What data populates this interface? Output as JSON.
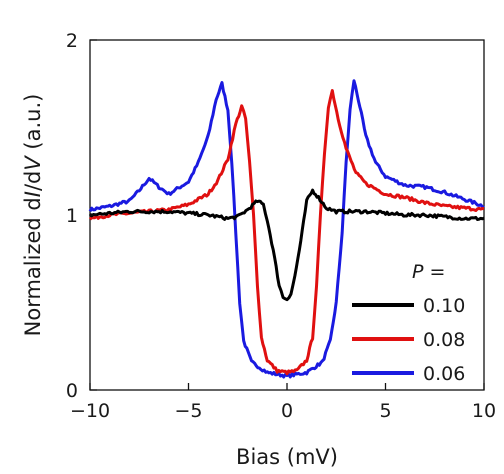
{
  "chart_data": {
    "type": "line",
    "xlabel": "Bias (mV)",
    "ylabel_parts": [
      "Normalized d",
      "I",
      "/d",
      "V",
      " (a.u.)"
    ],
    "xlim": [
      -10,
      10
    ],
    "ylim": [
      0,
      2
    ],
    "x_ticks": [
      -10,
      -5,
      0,
      5,
      10
    ],
    "x_tick_labels": [
      "−10",
      "−5",
      "0",
      "5",
      "10"
    ],
    "y_ticks": [
      0,
      1,
      2
    ],
    "y_tick_labels": [
      "0",
      "1",
      "2"
    ],
    "grid": false,
    "legend": {
      "placement": "bottom-right",
      "title_italic": "P",
      "title_rest": " ="
    },
    "series": [
      {
        "name": "0.10",
        "color": "#000000",
        "points": [
          [
            -10,
            1.0
          ],
          [
            -9,
            1.01
          ],
          [
            -8,
            1.02
          ],
          [
            -7,
            1.02
          ],
          [
            -6,
            1.02
          ],
          [
            -5,
            1.01
          ],
          [
            -4,
            1.0
          ],
          [
            -3,
            0.98
          ],
          [
            -2.5,
            0.99
          ],
          [
            -2,
            1.03
          ],
          [
            -1.5,
            1.08
          ],
          [
            -1.2,
            1.06
          ],
          [
            -1,
            0.97
          ],
          [
            -0.7,
            0.8
          ],
          [
            -0.4,
            0.6
          ],
          [
            -0.2,
            0.53
          ],
          [
            0,
            0.52
          ],
          [
            0.2,
            0.55
          ],
          [
            0.4,
            0.65
          ],
          [
            0.7,
            0.85
          ],
          [
            1,
            1.08
          ],
          [
            1.3,
            1.14
          ],
          [
            1.6,
            1.1
          ],
          [
            2,
            1.04
          ],
          [
            2.5,
            1.02
          ],
          [
            3,
            1.02
          ],
          [
            4,
            1.02
          ],
          [
            5,
            1.01
          ],
          [
            6,
            1.0
          ],
          [
            7,
            1.0
          ],
          [
            8,
            0.99
          ],
          [
            9,
            0.98
          ],
          [
            10,
            0.98
          ]
        ]
      },
      {
        "name": "0.08",
        "color": "#e01010",
        "points": [
          [
            -10,
            0.98
          ],
          [
            -9,
            1.0
          ],
          [
            -8,
            1.01
          ],
          [
            -7,
            1.02
          ],
          [
            -6,
            1.03
          ],
          [
            -5,
            1.06
          ],
          [
            -4,
            1.12
          ],
          [
            -3.5,
            1.2
          ],
          [
            -3,
            1.32
          ],
          [
            -2.6,
            1.52
          ],
          [
            -2.3,
            1.62
          ],
          [
            -2.1,
            1.55
          ],
          [
            -1.9,
            1.3
          ],
          [
            -1.7,
            1.0
          ],
          [
            -1.5,
            0.6
          ],
          [
            -1.3,
            0.3
          ],
          [
            -1.0,
            0.17
          ],
          [
            -0.5,
            0.11
          ],
          [
            0,
            0.1
          ],
          [
            0.5,
            0.11
          ],
          [
            1.0,
            0.17
          ],
          [
            1.3,
            0.3
          ],
          [
            1.5,
            0.6
          ],
          [
            1.7,
            1.0
          ],
          [
            1.9,
            1.35
          ],
          [
            2.1,
            1.62
          ],
          [
            2.3,
            1.71
          ],
          [
            2.6,
            1.55
          ],
          [
            3,
            1.38
          ],
          [
            3.5,
            1.24
          ],
          [
            4,
            1.18
          ],
          [
            5,
            1.12
          ],
          [
            6,
            1.1
          ],
          [
            7,
            1.07
          ],
          [
            8,
            1.05
          ],
          [
            9,
            1.04
          ],
          [
            10,
            1.03
          ]
        ]
      },
      {
        "name": "0.06",
        "color": "#1a1ae0",
        "points": [
          [
            -10,
            1.03
          ],
          [
            -9,
            1.05
          ],
          [
            -8,
            1.08
          ],
          [
            -7.5,
            1.14
          ],
          [
            -7,
            1.21
          ],
          [
            -6.5,
            1.16
          ],
          [
            -6,
            1.12
          ],
          [
            -5,
            1.19
          ],
          [
            -4.5,
            1.3
          ],
          [
            -4,
            1.45
          ],
          [
            -3.6,
            1.66
          ],
          [
            -3.3,
            1.75
          ],
          [
            -3.0,
            1.6
          ],
          [
            -2.8,
            1.3
          ],
          [
            -2.6,
            0.9
          ],
          [
            -2.4,
            0.5
          ],
          [
            -2.2,
            0.28
          ],
          [
            -1.8,
            0.16
          ],
          [
            -1,
            0.1
          ],
          [
            0,
            0.08
          ],
          [
            1,
            0.1
          ],
          [
            1.8,
            0.16
          ],
          [
            2.2,
            0.28
          ],
          [
            2.5,
            0.5
          ],
          [
            2.8,
            0.9
          ],
          [
            3.0,
            1.3
          ],
          [
            3.2,
            1.6
          ],
          [
            3.4,
            1.77
          ],
          [
            3.7,
            1.62
          ],
          [
            4,
            1.45
          ],
          [
            4.5,
            1.3
          ],
          [
            5,
            1.22
          ],
          [
            6,
            1.17
          ],
          [
            7,
            1.16
          ],
          [
            8,
            1.13
          ],
          [
            9,
            1.09
          ],
          [
            10,
            1.05
          ]
        ]
      }
    ]
  }
}
